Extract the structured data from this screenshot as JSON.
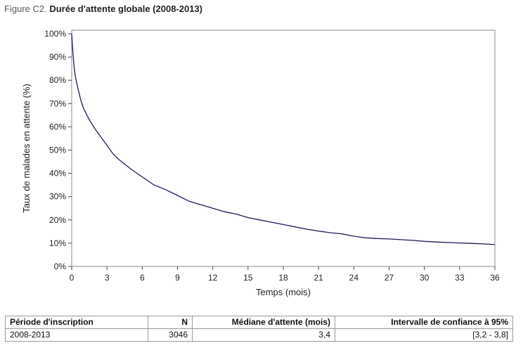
{
  "figure": {
    "label": "Figure C2.",
    "title": "Durée d'attente globale (2008-2013)"
  },
  "chart_data": {
    "type": "line",
    "xlabel": "Temps (mois)",
    "ylabel": "Taux de malades en attente (%)",
    "xlim": [
      0,
      36
    ],
    "ylim": [
      0,
      100
    ],
    "x_ticks": [
      0,
      3,
      6,
      9,
      12,
      15,
      18,
      21,
      24,
      27,
      30,
      33,
      36
    ],
    "x_tick_labels": [
      "0",
      "3",
      "6",
      "9",
      "12",
      "15",
      "18",
      "21",
      "24",
      "27",
      "30",
      "33",
      "36"
    ],
    "y_ticks": [
      0,
      10,
      20,
      30,
      40,
      50,
      60,
      70,
      80,
      90,
      100
    ],
    "y_tick_labels": [
      "0%",
      "10%",
      "20%",
      "30%",
      "40%",
      "50%",
      "60%",
      "70%",
      "80%",
      "90%",
      "100%"
    ],
    "grid": false,
    "line_color": "#1f1a55",
    "series": [
      {
        "x": [
          0,
          0.05,
          0.1,
          0.2,
          0.3,
          0.5,
          0.75,
          1,
          1.5,
          2,
          2.5,
          3,
          3.5,
          4,
          5,
          6,
          7,
          8,
          9,
          10,
          11,
          12,
          13,
          14,
          15,
          16,
          17,
          18,
          19,
          20,
          21,
          22,
          23,
          24,
          25,
          26,
          27,
          28,
          29,
          30,
          31,
          32,
          33,
          34,
          35,
          36
        ],
        "y": [
          100,
          96,
          92,
          86,
          82,
          77,
          72,
          68,
          63,
          59,
          55.5,
          52,
          48.5,
          46,
          42,
          38.5,
          35,
          33,
          30.5,
          28,
          26.5,
          25,
          23.5,
          22.5,
          21,
          20,
          19,
          18,
          17,
          16,
          15.2,
          14.5,
          14,
          13,
          12.3,
          12,
          11.8,
          11.5,
          11.2,
          10.8,
          10.5,
          10.3,
          10.1,
          9.9,
          9.7,
          9.4
        ]
      }
    ]
  },
  "table": {
    "headers": {
      "periode": "Période d'inscription",
      "n": "N",
      "mediane": "Médiane d'attente (mois)",
      "ic": "Intervalle de confiance à 95%"
    },
    "rows": [
      {
        "periode": "2008-2013",
        "n": "3046",
        "mediane": "3,4",
        "ic": "[3,2 - 3,8]"
      }
    ]
  }
}
